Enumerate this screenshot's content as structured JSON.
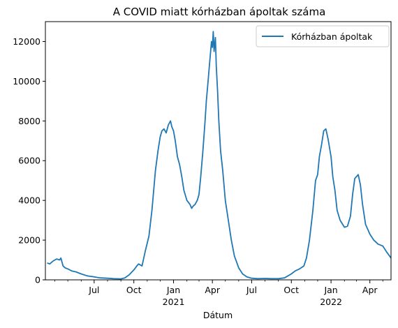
{
  "chart_data": {
    "type": "line",
    "title": "A COVID miatt kórházban ápoltak száma",
    "xlabel": "Dátum",
    "ylabel": "",
    "grid": false,
    "legend_position": "top-right",
    "line_color": "#1f77b4",
    "xlim": [
      "2020-03-10",
      "2022-05-20"
    ],
    "ylim": [
      0,
      13000
    ],
    "y_ticks": [
      0,
      2000,
      4000,
      6000,
      8000,
      10000,
      12000
    ],
    "x_ticks": [
      {
        "date": "2020-07-01",
        "label": "Jul",
        "sub": ""
      },
      {
        "date": "2020-10-01",
        "label": "Oct",
        "sub": ""
      },
      {
        "date": "2021-01-01",
        "label": "Jan",
        "sub": "2021"
      },
      {
        "date": "2021-04-01",
        "label": "Apr",
        "sub": ""
      },
      {
        "date": "2021-07-01",
        "label": "Jul",
        "sub": ""
      },
      {
        "date": "2021-10-01",
        "label": "Oct",
        "sub": ""
      },
      {
        "date": "2022-01-01",
        "label": "Jan",
        "sub": "2022"
      },
      {
        "date": "2022-04-01",
        "label": "Apr",
        "sub": ""
      }
    ],
    "minor_ticks": [
      "2020-04-01",
      "2020-05-01",
      "2020-06-01",
      "2020-08-01",
      "2020-09-01",
      "2020-11-01",
      "2020-12-01",
      "2021-02-01",
      "2021-03-01",
      "2021-05-01",
      "2021-06-01",
      "2021-08-01",
      "2021-09-01",
      "2021-11-01",
      "2021-12-01",
      "2022-02-01",
      "2022-03-01",
      "2022-05-01"
    ],
    "series": [
      {
        "name": "Kórházban ápoltak",
        "x": [
          "2020-03-14",
          "2020-03-20",
          "2020-03-28",
          "2020-04-05",
          "2020-04-12",
          "2020-04-15",
          "2020-04-20",
          "2020-04-25",
          "2020-05-01",
          "2020-05-10",
          "2020-05-20",
          "2020-06-01",
          "2020-06-15",
          "2020-07-01",
          "2020-07-15",
          "2020-08-01",
          "2020-08-15",
          "2020-09-01",
          "2020-09-10",
          "2020-09-20",
          "2020-10-01",
          "2020-10-08",
          "2020-10-12",
          "2020-10-20",
          "2020-10-28",
          "2020-11-05",
          "2020-11-12",
          "2020-11-20",
          "2020-11-26",
          "2020-12-01",
          "2020-12-05",
          "2020-12-10",
          "2020-12-15",
          "2020-12-20",
          "2020-12-25",
          "2020-12-28",
          "2021-01-01",
          "2021-01-05",
          "2021-01-10",
          "2021-01-15",
          "2021-01-20",
          "2021-01-25",
          "2021-02-01",
          "2021-02-08",
          "2021-02-12",
          "2021-02-15",
          "2021-02-20",
          "2021-02-25",
          "2021-03-01",
          "2021-03-05",
          "2021-03-10",
          "2021-03-15",
          "2021-03-18",
          "2021-03-22",
          "2021-03-26",
          "2021-03-30",
          "2021-04-01",
          "2021-04-03",
          "2021-04-05",
          "2021-04-08",
          "2021-04-10",
          "2021-04-13",
          "2021-04-16",
          "2021-04-20",
          "2021-04-25",
          "2021-05-01",
          "2021-05-08",
          "2021-05-15",
          "2021-05-22",
          "2021-06-01",
          "2021-06-10",
          "2021-06-20",
          "2021-07-01",
          "2021-07-15",
          "2021-08-01",
          "2021-08-15",
          "2021-09-01",
          "2021-09-15",
          "2021-10-01",
          "2021-10-10",
          "2021-10-20",
          "2021-10-30",
          "2021-11-05",
          "2021-11-12",
          "2021-11-20",
          "2021-11-26",
          "2021-12-01",
          "2021-12-05",
          "2021-12-10",
          "2021-12-15",
          "2021-12-20",
          "2021-12-25",
          "2022-01-01",
          "2022-01-05",
          "2022-01-10",
          "2022-01-15",
          "2022-01-22",
          "2022-02-01",
          "2022-02-08",
          "2022-02-15",
          "2022-02-20",
          "2022-02-25",
          "2022-03-01",
          "2022-03-05",
          "2022-03-10",
          "2022-03-15",
          "2022-03-22",
          "2022-04-01",
          "2022-04-10",
          "2022-04-20",
          "2022-05-01",
          "2022-05-10",
          "2022-05-20"
        ],
        "y": [
          850,
          800,
          950,
          1050,
          1000,
          1100,
          700,
          600,
          550,
          450,
          400,
          300,
          200,
          150,
          100,
          80,
          60,
          50,
          100,
          250,
          500,
          700,
          800,
          700,
          1500,
          2200,
          3500,
          5500,
          6500,
          7200,
          7500,
          7600,
          7400,
          7800,
          8000,
          7700,
          7500,
          7000,
          6200,
          5800,
          5200,
          4500,
          4000,
          3800,
          3600,
          3700,
          3800,
          4000,
          4300,
          5200,
          6500,
          8000,
          9000,
          10000,
          11000,
          12000,
          11700,
          12500,
          11500,
          12200,
          10800,
          9500,
          8000,
          6500,
          5500,
          4000,
          3000,
          2000,
          1200,
          600,
          300,
          150,
          80,
          60,
          70,
          60,
          60,
          100,
          300,
          450,
          550,
          700,
          1100,
          2000,
          3500,
          5000,
          5300,
          6200,
          6800,
          7500,
          7600,
          7100,
          6200,
          5200,
          4500,
          3500,
          3000,
          2650,
          2700,
          3200,
          4300,
          5100,
          5200,
          5300,
          4800,
          3800,
          2800,
          2300,
          2000,
          1800,
          1700,
          1400,
          1100
        ]
      }
    ]
  }
}
